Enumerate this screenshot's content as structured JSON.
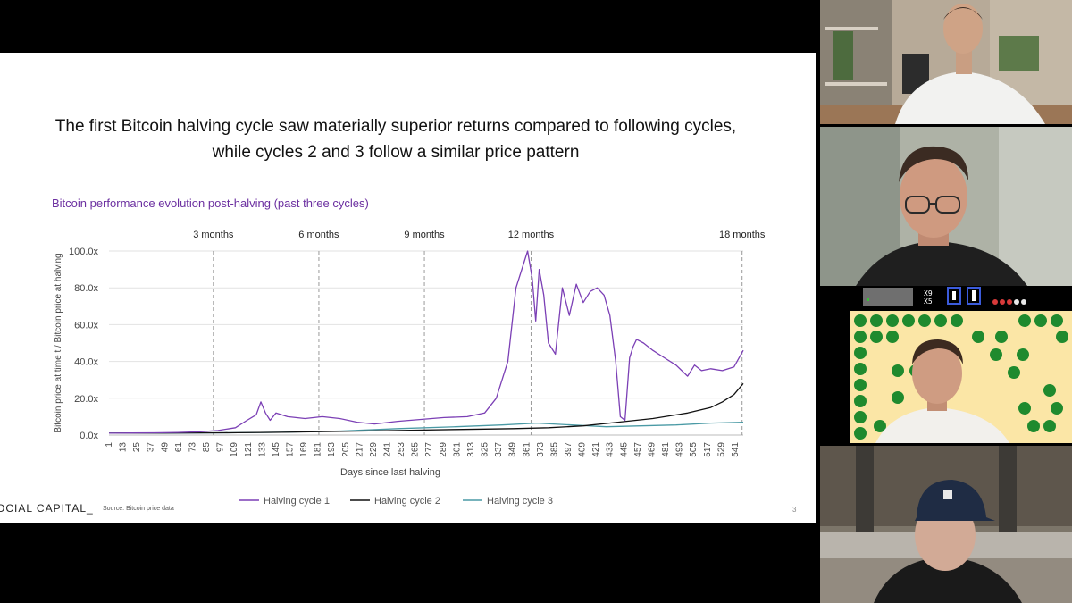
{
  "slide": {
    "headline_line1": "The first Bitcoin halving cycle saw materially superior returns compared to following cycles,",
    "headline_line2": "while cycles 2 and 3 follow a similar price pattern",
    "brand": "OCIAL CAPITAL_",
    "source": "Source: Bitcoin price data",
    "page_number": "3"
  },
  "chart_data": {
    "type": "line",
    "title": "Bitcoin performance evolution post-halving (past three cycles)",
    "xlabel": "Days since last halving",
    "ylabel": "Bitcoin price at time t / Bitcoin price at halving",
    "xlim": [
      1,
      548
    ],
    "ylim": [
      0,
      100
    ],
    "x_ticks": [
      1,
      13,
      25,
      37,
      49,
      61,
      73,
      85,
      97,
      109,
      121,
      133,
      145,
      157,
      169,
      181,
      193,
      205,
      217,
      229,
      241,
      253,
      265,
      277,
      289,
      301,
      313,
      325,
      337,
      349,
      361,
      373,
      385,
      397,
      409,
      421,
      433,
      445,
      457,
      469,
      481,
      493,
      505,
      517,
      529,
      541
    ],
    "y_ticks": [
      "0.0x",
      "20.0x",
      "40.0x",
      "60.0x",
      "80.0x",
      "100.0x"
    ],
    "y_tick_values": [
      0,
      20,
      40,
      60,
      80,
      100
    ],
    "reference_lines": [
      {
        "label": "3 months",
        "x": 91
      },
      {
        "label": "6 months",
        "x": 182
      },
      {
        "label": "9 months",
        "x": 273
      },
      {
        "label": "12 months",
        "x": 365
      },
      {
        "label": "18 months",
        "x": 547
      }
    ],
    "grid": true,
    "legend": "bottom",
    "series": [
      {
        "name": "Halving cycle 1",
        "color": "#7b3fb5",
        "x": [
          1,
          20,
          40,
          60,
          80,
          95,
          110,
          120,
          128,
          132,
          136,
          140,
          145,
          155,
          170,
          185,
          200,
          215,
          230,
          250,
          270,
          290,
          310,
          325,
          335,
          345,
          352,
          358,
          362,
          366,
          369,
          372,
          376,
          380,
          386,
          392,
          398,
          404,
          410,
          416,
          422,
          428,
          433,
          438,
          442,
          446,
          450,
          453,
          456,
          462,
          470,
          480,
          490,
          500,
          506,
          512,
          520,
          530,
          540,
          548
        ],
        "y": [
          1,
          1.1,
          1.2,
          1.4,
          1.8,
          2.5,
          4,
          8,
          11,
          18,
          12,
          8,
          12,
          10,
          9,
          10,
          9,
          7,
          6,
          7.5,
          8.5,
          9.5,
          10,
          12,
          20,
          40,
          80,
          92,
          100,
          85,
          62,
          90,
          76,
          50,
          44,
          80,
          65,
          82,
          72,
          78,
          80,
          76,
          65,
          40,
          10,
          8,
          42,
          48,
          52,
          50,
          46,
          42,
          38,
          32,
          38,
          35,
          36,
          35,
          37,
          46
        ]
      },
      {
        "name": "Halving cycle 2",
        "color": "#111111",
        "x": [
          1,
          50,
          100,
          150,
          200,
          250,
          300,
          350,
          380,
          410,
          440,
          470,
          500,
          520,
          530,
          540,
          548
        ],
        "y": [
          1,
          1.1,
          1.2,
          1.5,
          2,
          2.5,
          3,
          3.5,
          4,
          5,
          7,
          9,
          12,
          15,
          18,
          22,
          28
        ]
      },
      {
        "name": "Halving cycle 3",
        "color": "#4a9aa5",
        "x": [
          1,
          50,
          100,
          150,
          200,
          250,
          300,
          340,
          370,
          400,
          430,
          460,
          490,
          520,
          548
        ],
        "y": [
          1,
          1,
          1.2,
          1.5,
          2.2,
          3.5,
          4.5,
          5.5,
          6.5,
          5.5,
          4.5,
          5,
          5.5,
          6.5,
          7
        ]
      }
    ]
  },
  "participants": [
    {
      "name": "participant-1"
    },
    {
      "name": "participant-2"
    },
    {
      "name": "participant-3-game"
    },
    {
      "name": "participant-4"
    }
  ],
  "game_hud": {
    "counter_top": "X9",
    "counter_bottom": "X5"
  }
}
